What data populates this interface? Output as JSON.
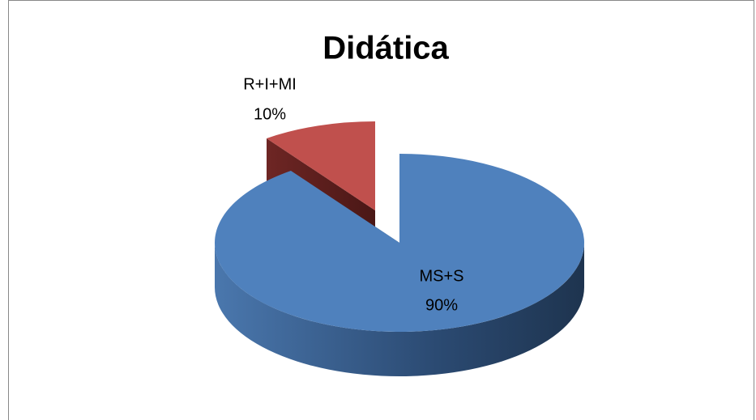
{
  "chart_data": {
    "type": "pie",
    "title": "Didática",
    "categories": [
      "MS+S",
      "R+I+MI"
    ],
    "values": [
      90,
      10
    ],
    "value_labels": [
      "90%",
      "10%"
    ],
    "colors": [
      "#4f81bd",
      "#c0504d"
    ]
  }
}
